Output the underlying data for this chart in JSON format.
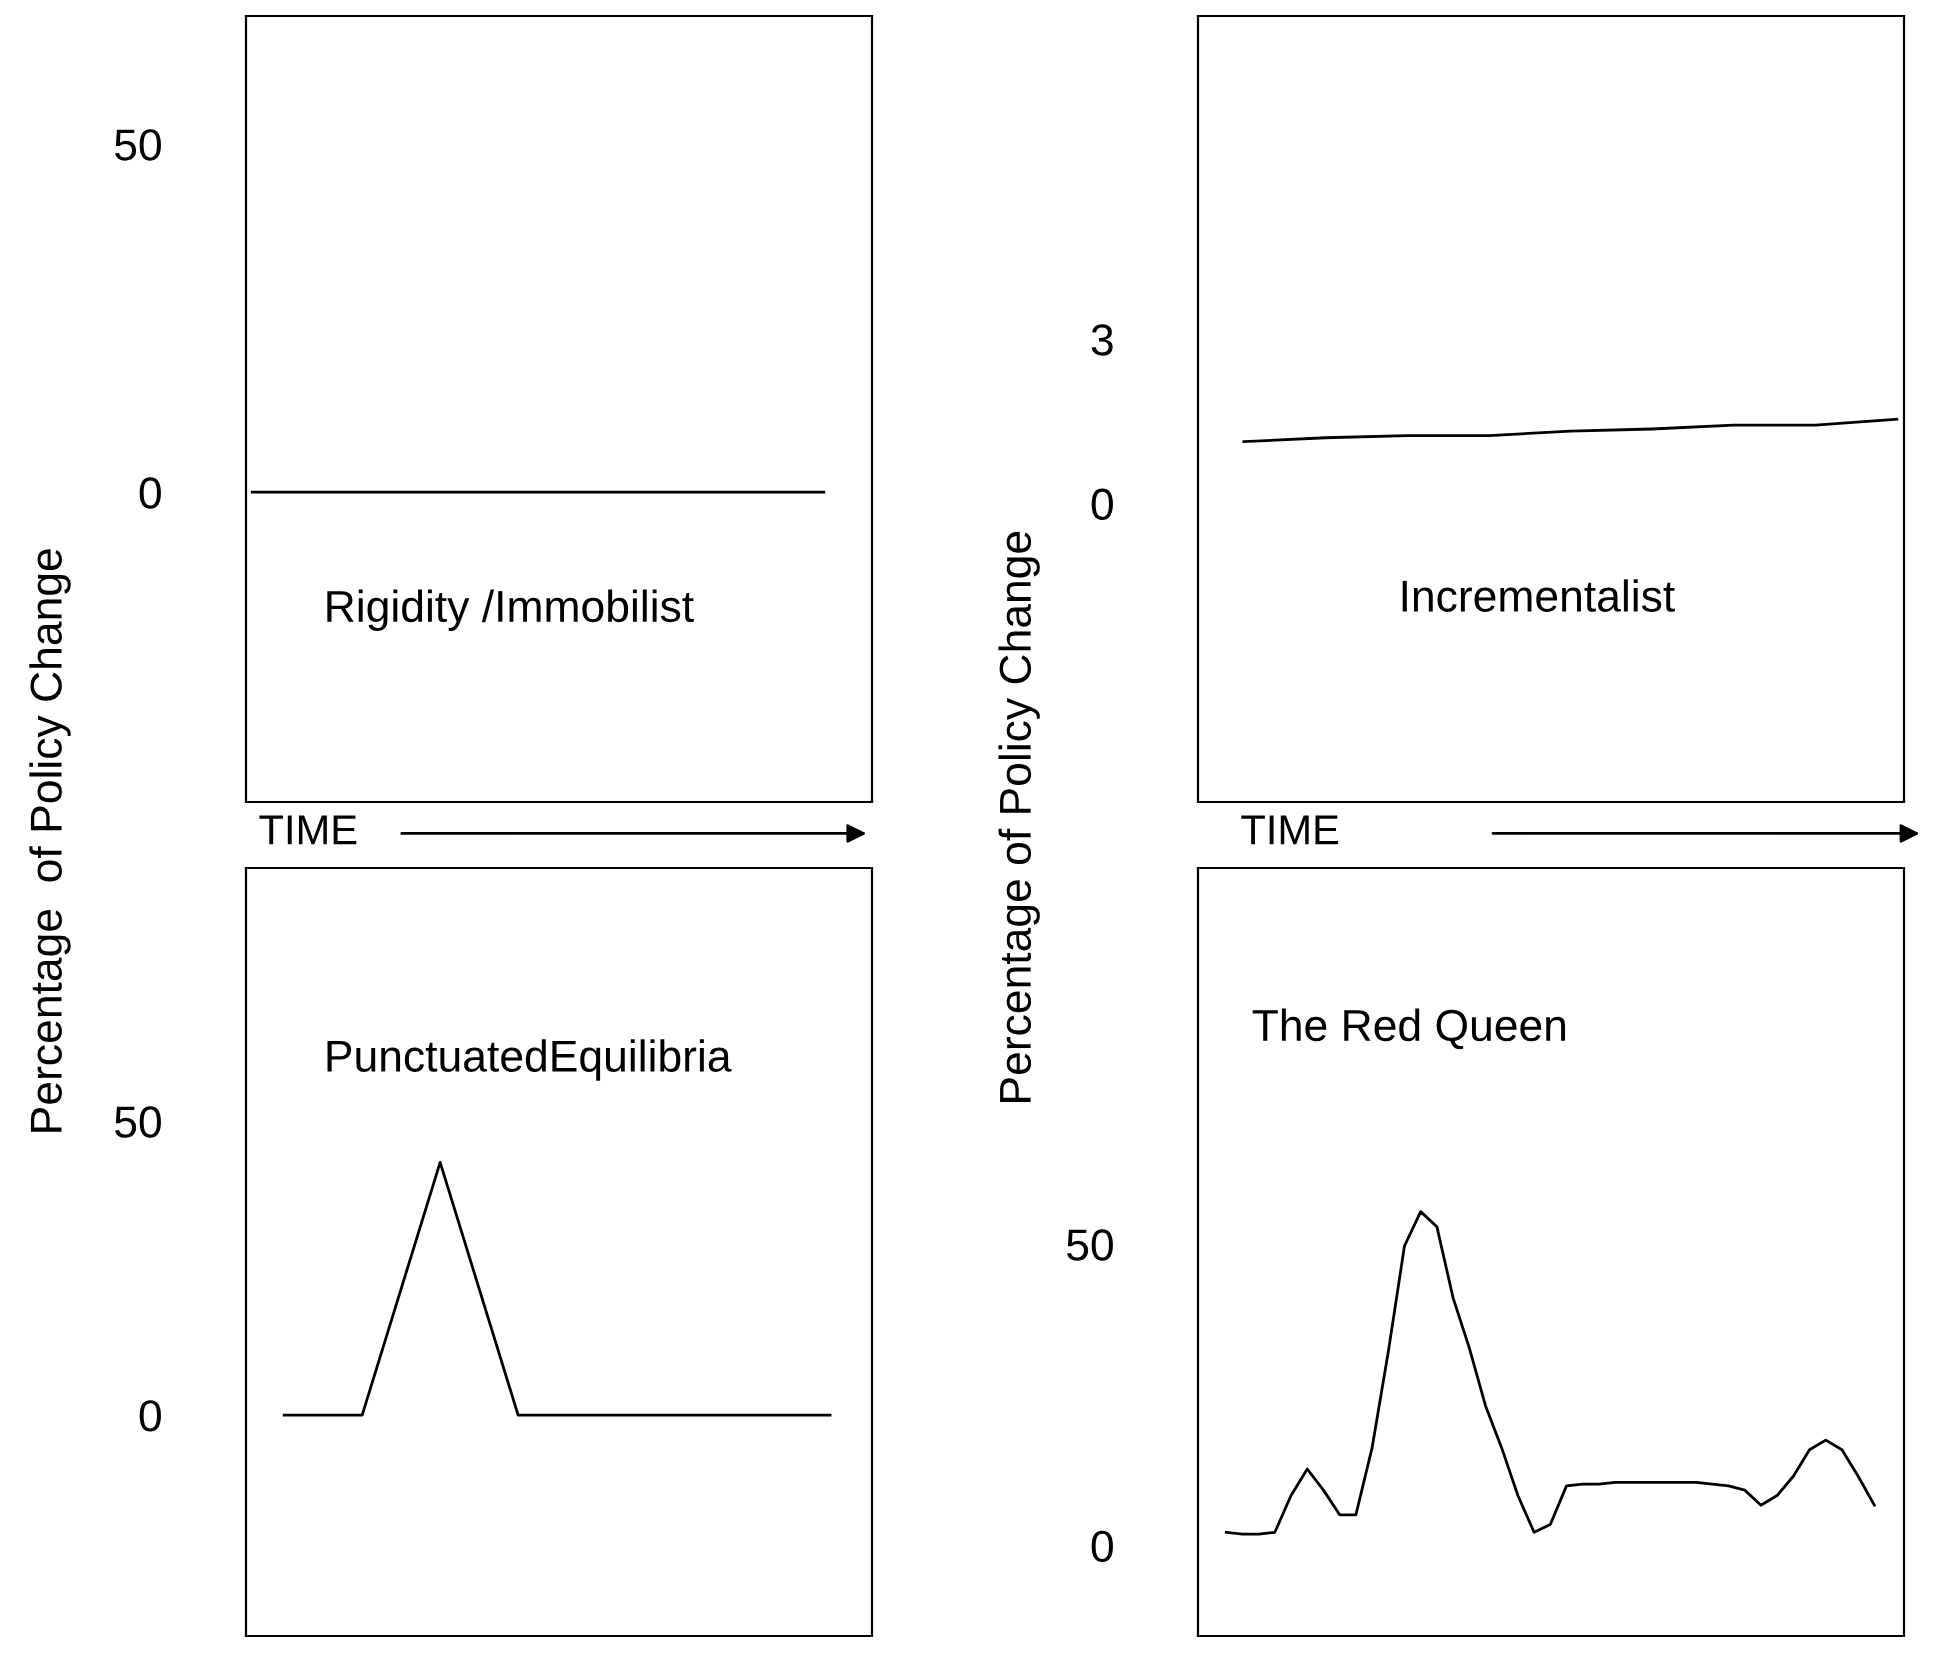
{
  "chart_data": [
    {
      "type": "line",
      "title": "Rigidity /Immobilist",
      "xlabel": "TIME",
      "ylabel": "Percentage  of Policy Change",
      "categories": [
        null,
        null,
        null,
        null,
        null,
        null,
        null,
        null
      ],
      "values": [
        0,
        0,
        0,
        0,
        0,
        0,
        0,
        0
      ],
      "color": "#000000",
      "ylim": [
        -44.5,
        68.4
      ],
      "yticks": [
        0,
        50
      ],
      "tick_labels": "y",
      "grid": false
    },
    {
      "type": "line",
      "title": "Incrementalist",
      "xlabel": "TIME",
      "ylabel": "Percentage of Policy Change",
      "categories": [
        null,
        null,
        null,
        null,
        null,
        null,
        null,
        null,
        null
      ],
      "values": [
        1.13,
        1.2,
        1.24,
        1.24,
        1.32,
        1.36,
        1.43,
        1.43,
        1.54
      ],
      "color": "#000000",
      "ylim": [
        -5.45,
        8.9
      ],
      "yticks": [
        0,
        3
      ],
      "tick_labels": "y",
      "grid": false
    },
    {
      "type": "line",
      "title": "PunctuatedEquilibria",
      "categories": [
        null,
        null,
        null,
        null,
        null,
        null,
        null,
        null
      ],
      "values": [
        0,
        0,
        43,
        0,
        0,
        0,
        0,
        0
      ],
      "color": "#000000",
      "ylim": [
        -37.6,
        93.1
      ],
      "yticks": [
        0,
        50
      ],
      "tick_labels": "y",
      "grid": false
    },
    {
      "type": "line",
      "title": "The Red Queen",
      "categories": [
        null,
        null,
        null,
        null,
        null,
        null,
        null,
        null,
        null,
        null,
        null,
        null,
        null,
        null,
        null,
        null,
        null,
        null,
        null,
        null,
        null,
        null,
        null,
        null,
        null,
        null,
        null,
        null,
        null,
        null,
        null,
        null,
        null,
        null,
        null,
        null,
        null,
        null,
        null,
        null,
        null
      ],
      "values": [
        2.2,
        1.9,
        1.9,
        2.2,
        8.3,
        12.7,
        9.2,
        5.1,
        5.1,
        16.2,
        32.1,
        49.7,
        55.4,
        52.9,
        41.1,
        32.8,
        23.2,
        16.2,
        8.3,
        2.2,
        3.5,
        9.9,
        10.2,
        10.2,
        10.5,
        10.5,
        10.5,
        10.5,
        10.5,
        10.5,
        10.2,
        9.9,
        9.2,
        6.7,
        8.3,
        11.5,
        15.9,
        17.5,
        15.9,
        11.5,
        6.7
      ],
      "color": "#000000",
      "ylim": [
        -15.0,
        112.4
      ],
      "yticks": [
        0,
        50
      ],
      "tick_labels": "y",
      "grid": false
    }
  ]
}
